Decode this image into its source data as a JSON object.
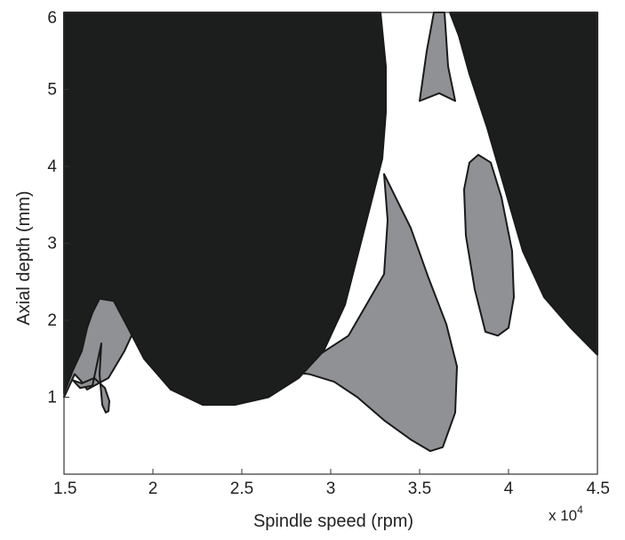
{
  "chart_data": {
    "type": "stability-lobe diagram",
    "title": "",
    "xlabel": "Spindle speed (rpm)",
    "ylabel": "Axial depth (mm)",
    "x_multiplier_label": "x 10",
    "x_multiplier_exponent": "4",
    "xlim": [
      15000,
      45000
    ],
    "ylim": [
      0,
      6
    ],
    "x_ticks": [
      {
        "value": 15000,
        "label": "1.5"
      },
      {
        "value": 20000,
        "label": "2"
      },
      {
        "value": 25000,
        "label": "2.5"
      },
      {
        "value": 30000,
        "label": "3"
      },
      {
        "value": 35000,
        "label": "3.5"
      },
      {
        "value": 40000,
        "label": "4"
      },
      {
        "value": 45000,
        "label": "4.5"
      }
    ],
    "y_ticks": [
      {
        "value": 1,
        "label": "1"
      },
      {
        "value": 2,
        "label": "2"
      },
      {
        "value": 3,
        "label": "3"
      },
      {
        "value": 4,
        "label": "4"
      },
      {
        "value": 5,
        "label": "5"
      },
      {
        "value": 6,
        "label": "6"
      }
    ],
    "grid": false,
    "regions": [
      {
        "shade": "gray",
        "color": "#8f9194",
        "points": [
          [
            15000,
            1.0
          ],
          [
            15250,
            1.5
          ],
          [
            15600,
            1.95
          ],
          [
            16300,
            2.3
          ],
          [
            17000,
            2.6
          ],
          [
            17600,
            3.1
          ],
          [
            17900,
            3.5
          ],
          [
            18100,
            3.0
          ],
          [
            18400,
            2.5
          ],
          [
            18800,
            1.8
          ],
          [
            18400,
            1.6
          ],
          [
            17500,
            1.25
          ],
          [
            16300,
            1.1
          ],
          [
            16000,
            1.2
          ],
          [
            15600,
            1.3
          ],
          [
            15200,
            1.1
          ],
          [
            15000,
            1.0
          ]
        ]
      },
      {
        "shade": "gray",
        "color": "#8f9194",
        "points": [
          [
            15500,
            1.22
          ],
          [
            16000,
            1.18
          ],
          [
            16700,
            1.25
          ],
          [
            17300,
            1.12
          ],
          [
            17550,
            0.95
          ],
          [
            17500,
            0.82
          ],
          [
            17350,
            0.8
          ],
          [
            17150,
            0.9
          ],
          [
            17000,
            1.3
          ],
          [
            17100,
            1.7
          ],
          [
            16600,
            1.15
          ],
          [
            15900,
            1.12
          ],
          [
            15500,
            1.22
          ]
        ]
      },
      {
        "shade": "gray",
        "color": "#8f9194",
        "points": [
          [
            27000,
            1.35
          ],
          [
            29000,
            1.5
          ],
          [
            31000,
            1.8
          ],
          [
            33000,
            2.6
          ],
          [
            33200,
            3.3
          ],
          [
            33000,
            3.9
          ],
          [
            34500,
            3.2
          ],
          [
            35500,
            2.55
          ],
          [
            36500,
            1.95
          ],
          [
            37100,
            1.4
          ],
          [
            37000,
            0.8
          ],
          [
            36300,
            0.35
          ],
          [
            35600,
            0.3
          ],
          [
            34500,
            0.45
          ],
          [
            33000,
            0.7
          ],
          [
            31500,
            1.0
          ],
          [
            30200,
            1.2
          ],
          [
            28800,
            1.3
          ],
          [
            27000,
            1.35
          ]
        ]
      },
      {
        "shade": "gray",
        "color": "#8f9194",
        "points": [
          [
            35800,
            6.0
          ],
          [
            36400,
            6.0
          ],
          [
            36600,
            5.3
          ],
          [
            37000,
            4.85
          ],
          [
            36100,
            4.95
          ],
          [
            35000,
            4.85
          ],
          [
            35400,
            5.5
          ],
          [
            35800,
            6.0
          ]
        ]
      },
      {
        "shade": "gray",
        "color": "#8f9194",
        "points": [
          [
            38300,
            4.15
          ],
          [
            39000,
            4.05
          ],
          [
            39600,
            3.6
          ],
          [
            40200,
            2.9
          ],
          [
            40300,
            2.3
          ],
          [
            40000,
            1.9
          ],
          [
            39400,
            1.8
          ],
          [
            38700,
            1.85
          ],
          [
            38100,
            2.4
          ],
          [
            37600,
            3.1
          ],
          [
            37500,
            3.7
          ],
          [
            37800,
            4.05
          ],
          [
            38300,
            4.15
          ]
        ]
      },
      {
        "shade": "black",
        "color": "#1c1e1e",
        "points": [
          [
            15000,
            6.0
          ],
          [
            32800,
            6.0
          ],
          [
            33100,
            5.3
          ],
          [
            33100,
            4.7
          ],
          [
            32900,
            4.1
          ],
          [
            31800,
            3.1
          ],
          [
            30800,
            2.2
          ],
          [
            29600,
            1.6
          ],
          [
            28200,
            1.25
          ],
          [
            26500,
            1.0
          ],
          [
            24600,
            0.9
          ],
          [
            22800,
            0.9
          ],
          [
            21000,
            1.1
          ],
          [
            19500,
            1.5
          ],
          [
            18600,
            1.9
          ],
          [
            17800,
            2.25
          ],
          [
            17000,
            2.28
          ],
          [
            16600,
            2.1
          ],
          [
            16300,
            1.9
          ],
          [
            16000,
            1.6
          ],
          [
            15500,
            1.35
          ],
          [
            15000,
            1.05
          ]
        ]
      },
      {
        "shade": "black",
        "color": "#1c1e1e",
        "points": [
          [
            36700,
            6.0
          ],
          [
            45000,
            6.0
          ],
          [
            45000,
            1.55
          ],
          [
            43500,
            1.9
          ],
          [
            42000,
            2.3
          ],
          [
            40800,
            2.9
          ],
          [
            39800,
            3.7
          ],
          [
            38800,
            4.5
          ],
          [
            37800,
            5.2
          ],
          [
            37200,
            5.7
          ],
          [
            36700,
            6.0
          ]
        ]
      }
    ]
  }
}
